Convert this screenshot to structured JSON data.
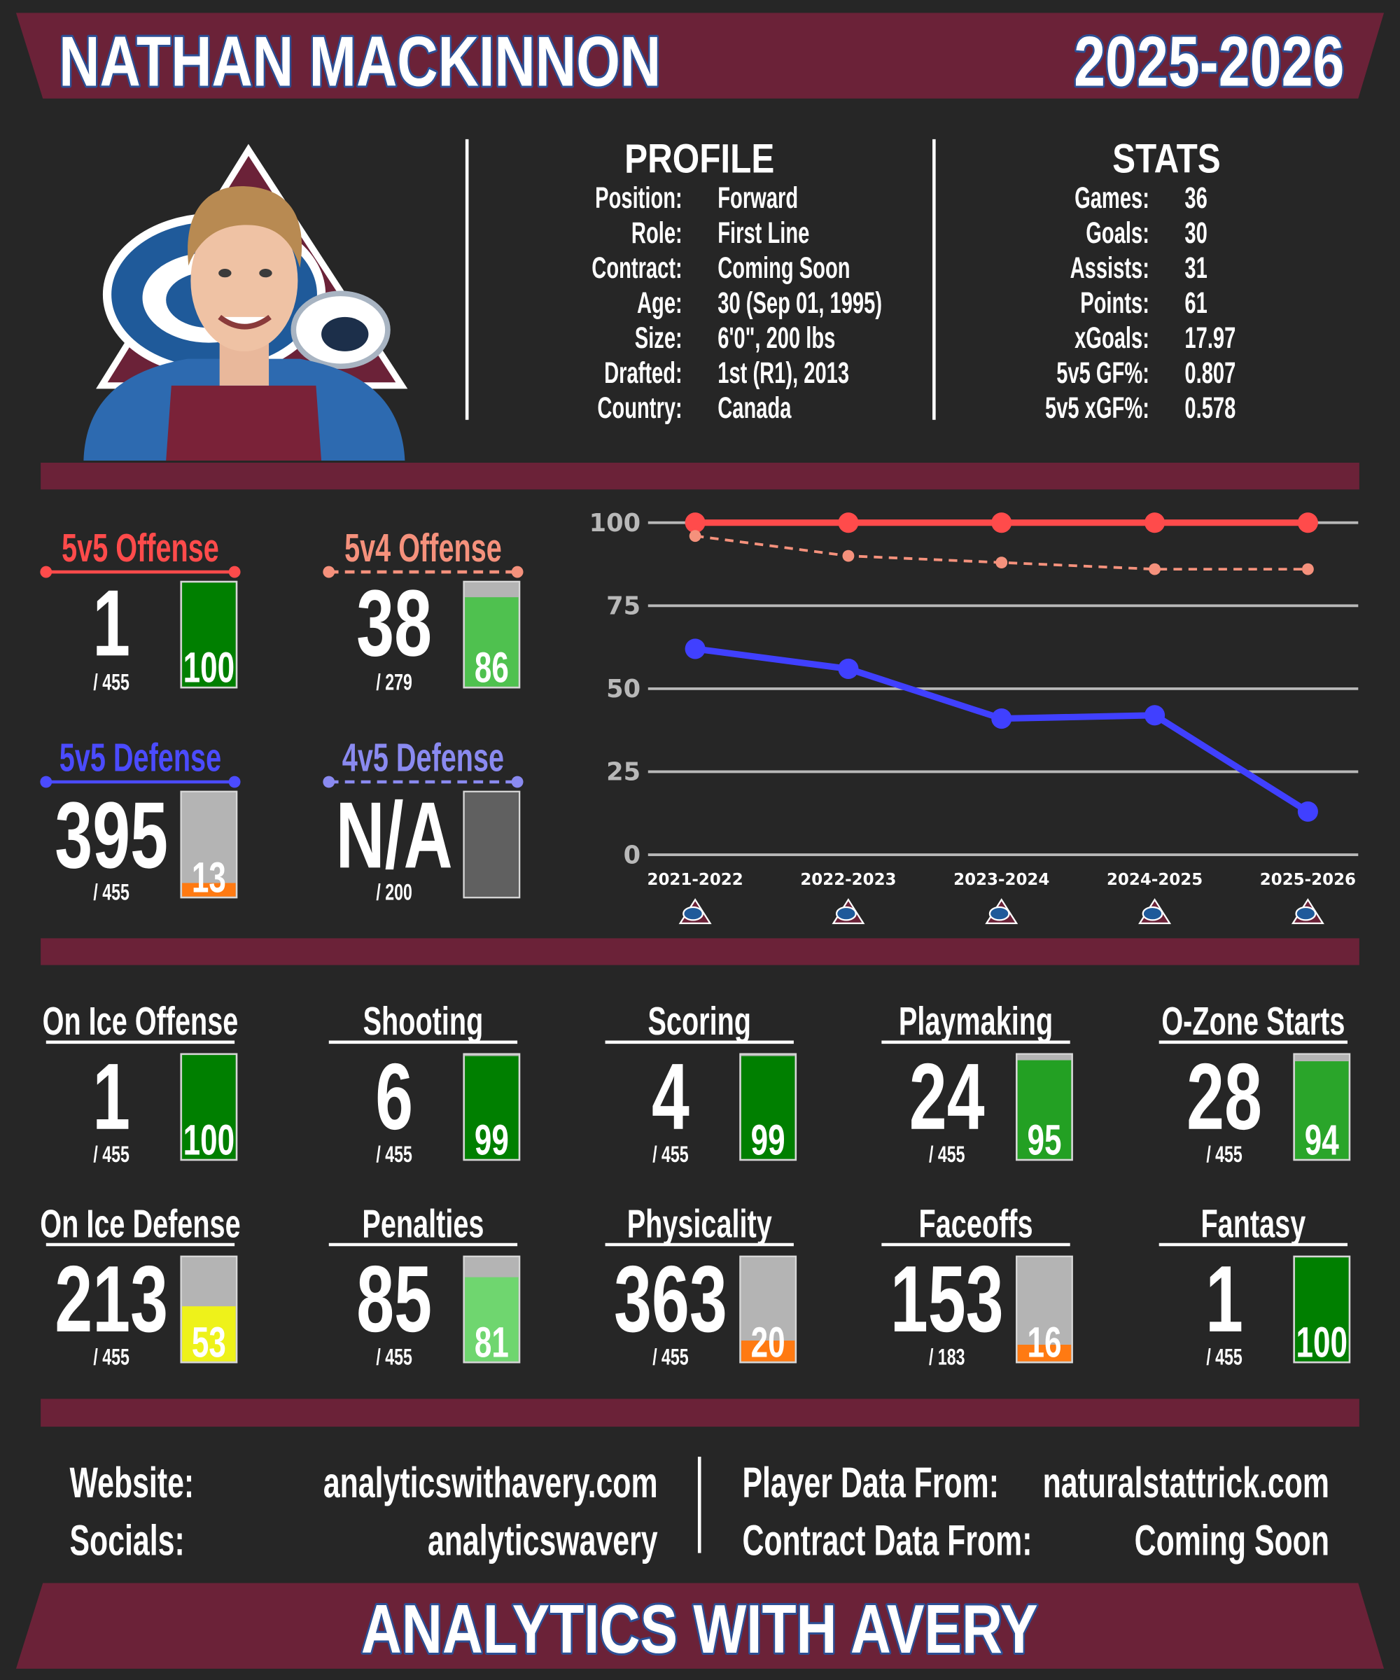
{
  "header": {
    "name": "NATHAN MACKINNON",
    "season": "2025-2026"
  },
  "profile": {
    "title": "PROFILE",
    "rows": [
      {
        "label": "Position:",
        "value": "Forward"
      },
      {
        "label": "Role:",
        "value": "First Line"
      },
      {
        "label": "Contract:",
        "value": "Coming Soon"
      },
      {
        "label": "Age:",
        "value": "30 (Sep 01, 1995)"
      },
      {
        "label": "Size:",
        "value": "6'0\", 200 lbs"
      },
      {
        "label": "Drafted:",
        "value": "1st (R1), 2013"
      },
      {
        "label": "Country:",
        "value": "Canada"
      }
    ]
  },
  "stats": {
    "title": "STATS",
    "rows": [
      {
        "label": "Games:",
        "value": "36"
      },
      {
        "label": "Goals:",
        "value": "30"
      },
      {
        "label": "Assists:",
        "value": "31"
      },
      {
        "label": "Points:",
        "value": "61"
      },
      {
        "label": "xGoals:",
        "value": "17.97"
      },
      {
        "label": "5v5 GF%:",
        "value": "0.807"
      },
      {
        "label": "5v5 xGF%:",
        "value": "0.578"
      }
    ]
  },
  "situation_cards": [
    {
      "title": "5v5 Offense",
      "rank": 1,
      "out_of": "/ 455",
      "percentile": 100,
      "title_color": "#ff4b4b",
      "dashed": false,
      "bar_color": "#007f00"
    },
    {
      "title": "5v4 Offense",
      "rank": 38,
      "out_of": "/ 279",
      "percentile": 86,
      "title_color": "#f5917c",
      "dashed": true,
      "bar_color": "#4fc14f"
    },
    {
      "title": "5v5 Defense",
      "rank": 395,
      "out_of": "/ 455",
      "percentile": 13,
      "title_color": "#4b4bff",
      "dashed": false,
      "bar_color": "#ff7a12"
    },
    {
      "title": "4v5 Defense",
      "rank": "N/A",
      "out_of": "/ 200",
      "percentile": null,
      "title_color": "#8a8af0",
      "dashed": true,
      "bar_color": "#606060"
    }
  ],
  "chart_data": {
    "type": "line",
    "categories": [
      "2021-2022",
      "2022-2023",
      "2023-2024",
      "2024-2025",
      "2025-2026"
    ],
    "ylim": [
      0,
      100
    ],
    "yticks": [
      0,
      25,
      50,
      75,
      100
    ],
    "grid": true,
    "series": [
      {
        "color": "#ff4b4b",
        "dashed": false,
        "values": [
          100,
          100,
          100,
          100,
          100
        ]
      },
      {
        "color": "#f5917c",
        "dashed": true,
        "values": [
          96,
          90,
          88,
          86,
          86
        ]
      },
      {
        "color": "#4040ff",
        "dashed": false,
        "values": [
          62,
          56,
          41,
          42,
          13
        ]
      }
    ]
  },
  "category_cards": [
    {
      "title": "On Ice Offense",
      "rank": 1,
      "out_of": "/ 455",
      "percentile": 100,
      "bar_color": "#007f00"
    },
    {
      "title": "Shooting",
      "rank": 6,
      "out_of": "/ 455",
      "percentile": 99,
      "bar_color": "#007f00"
    },
    {
      "title": "Scoring",
      "rank": 4,
      "out_of": "/ 455",
      "percentile": 99,
      "bar_color": "#007f00"
    },
    {
      "title": "Playmaking",
      "rank": 24,
      "out_of": "/ 455",
      "percentile": 95,
      "bar_color": "#23a023"
    },
    {
      "title": "O-Zone Starts",
      "rank": 28,
      "out_of": "/ 455",
      "percentile": 94,
      "bar_color": "#2aa52a"
    },
    {
      "title": "On Ice Defense",
      "rank": 213,
      "out_of": "/ 455",
      "percentile": 53,
      "bar_color": "#eef21a"
    },
    {
      "title": "Penalties",
      "rank": 85,
      "out_of": "/ 455",
      "percentile": 81,
      "bar_color": "#6fd66f"
    },
    {
      "title": "Physicality",
      "rank": 363,
      "out_of": "/ 455",
      "percentile": 20,
      "bar_color": "#ff7a12"
    },
    {
      "title": "Faceoffs",
      "rank": 153,
      "out_of": "/ 183",
      "percentile": 16,
      "bar_color": "#ff7a12"
    },
    {
      "title": "Fantasy",
      "rank": 1,
      "out_of": "/ 455",
      "percentile": 100,
      "bar_color": "#007f00"
    }
  ],
  "footer": {
    "links": [
      {
        "label": "Website:",
        "value": "analyticswithavery.com"
      },
      {
        "label": "Socials:",
        "value": "analyticswavery"
      }
    ],
    "sources": [
      {
        "label": "Player Data From:",
        "value": "naturalstattrick.com"
      },
      {
        "label": "Contract Data From:",
        "value": "Coming Soon"
      }
    ],
    "banner": "ANALYTICS WITH AVERY"
  }
}
